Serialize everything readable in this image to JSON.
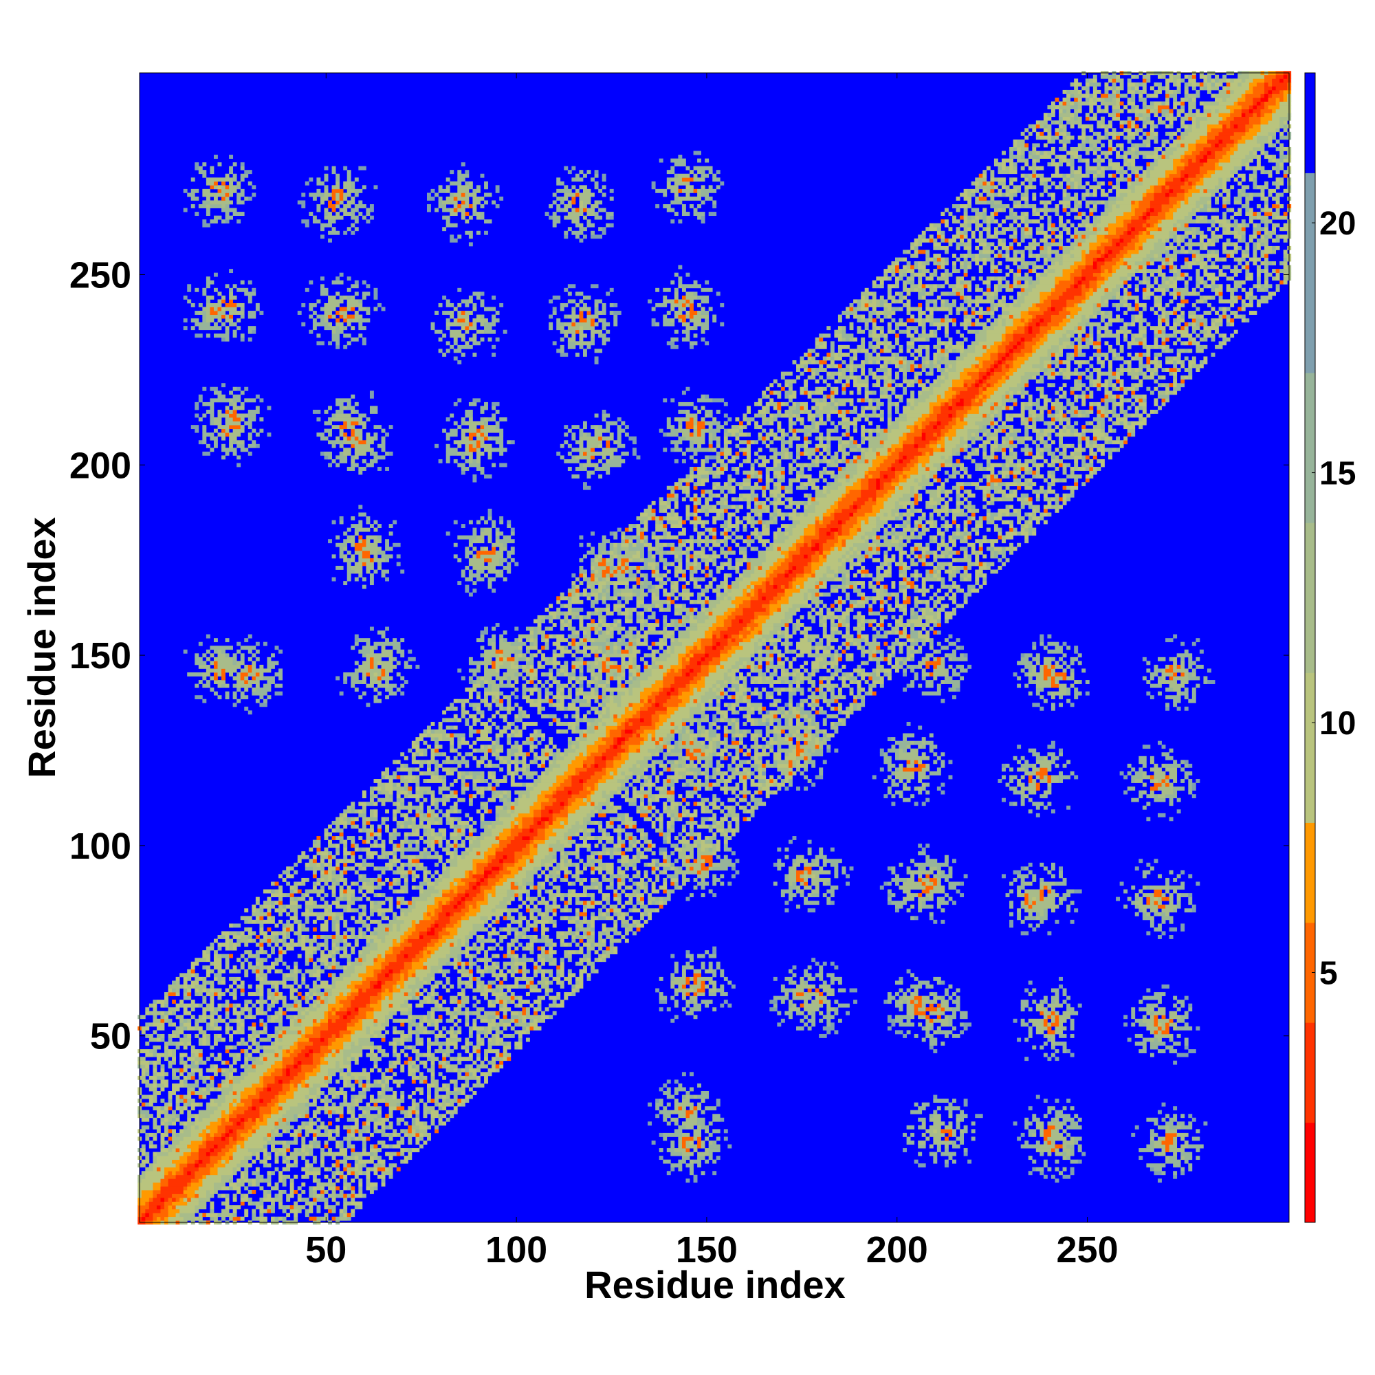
{
  "chart_data": {
    "type": "heatmap",
    "title": "",
    "xlabel": "Residue index",
    "ylabel": "Residue index",
    "xlim": [
      1,
      303
    ],
    "ylim": [
      1,
      303
    ],
    "x_ticks": [
      "50",
      "100",
      "150",
      "200",
      "250"
    ],
    "y_ticks": [
      "50",
      "100",
      "150",
      "200",
      "250"
    ],
    "colorbar": {
      "ticks": [
        "5",
        "10",
        "15",
        "20"
      ],
      "range": [
        0,
        23
      ],
      "colors": [
        "#ff0000",
        "#ff3300",
        "#ff6600",
        "#ff9900",
        "#b9c47e",
        "#a8bc8a",
        "#97b49a",
        "#7f9fae",
        "#0000ff"
      ],
      "bounds": [
        0,
        2,
        4,
        6,
        8,
        11,
        14,
        17,
        21,
        23
      ]
    },
    "background_color": "#0000ff",
    "diagonal_band_width": 12,
    "intra_clusters": [
      {
        "center": 60,
        "length": 118
      },
      {
        "center": 175,
        "length": 110
      },
      {
        "center": 255,
        "length": 95
      }
    ],
    "contact_blobs": [
      {
        "x": 22,
        "y": 272
      },
      {
        "x": 53,
        "y": 269
      },
      {
        "x": 86,
        "y": 269
      },
      {
        "x": 117,
        "y": 269
      },
      {
        "x": 22,
        "y": 241
      },
      {
        "x": 53,
        "y": 240
      },
      {
        "x": 86,
        "y": 236
      },
      {
        "x": 117,
        "y": 236
      },
      {
        "x": 25,
        "y": 210
      },
      {
        "x": 58,
        "y": 206
      },
      {
        "x": 89,
        "y": 206
      },
      {
        "x": 120,
        "y": 204
      },
      {
        "x": 60,
        "y": 176
      },
      {
        "x": 92,
        "y": 176
      },
      {
        "x": 128,
        "y": 174
      },
      {
        "x": 30,
        "y": 145
      },
      {
        "x": 63,
        "y": 146
      },
      {
        "x": 95,
        "y": 147
      },
      {
        "x": 125,
        "y": 147
      },
      {
        "x": 144,
        "y": 242
      },
      {
        "x": 147,
        "y": 210
      },
      {
        "x": 146,
        "y": 22
      },
      {
        "x": 148,
        "y": 64
      },
      {
        "x": 149,
        "y": 96
      },
      {
        "x": 212,
        "y": 25
      },
      {
        "x": 241,
        "y": 24
      },
      {
        "x": 272,
        "y": 22
      },
      {
        "x": 179,
        "y": 60
      },
      {
        "x": 210,
        "y": 56
      },
      {
        "x": 240,
        "y": 55
      },
      {
        "x": 270,
        "y": 53
      },
      {
        "x": 178,
        "y": 92
      },
      {
        "x": 208,
        "y": 90
      },
      {
        "x": 238,
        "y": 87
      },
      {
        "x": 268,
        "y": 86
      },
      {
        "x": 173,
        "y": 124
      },
      {
        "x": 205,
        "y": 122
      },
      {
        "x": 238,
        "y": 118
      },
      {
        "x": 268,
        "y": 117
      },
      {
        "x": 240,
        "y": 145
      },
      {
        "x": 273,
        "y": 145
      }
    ]
  }
}
